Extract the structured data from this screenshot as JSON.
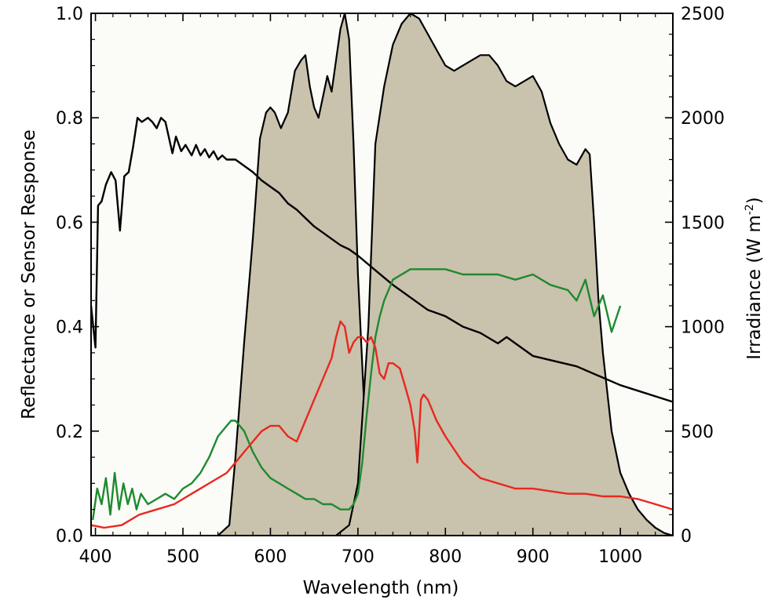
{
  "chart_data": {
    "type": "line",
    "xlabel": "Wavelength (nm)",
    "ylabel": "Reflectance or Sensor Response",
    "y2label_main": "Irradiance (W m",
    "y2label_sup": "-2",
    "y2label_close": ")",
    "xlim": [
      395,
      1060
    ],
    "ylim": [
      0,
      1.0
    ],
    "y2lim": [
      0,
      2500
    ],
    "x_ticks": [
      400,
      500,
      600,
      700,
      800,
      900,
      1000
    ],
    "x_tick_labels": [
      "400",
      "500",
      "600",
      "700",
      "800",
      "900",
      "1000"
    ],
    "y_ticks": [
      0,
      0.2,
      0.4,
      0.6,
      0.8,
      1.0
    ],
    "y_tick_labels": [
      "0.0",
      "0.2",
      "0.4",
      "0.6",
      "0.8",
      "1.0"
    ],
    "y2_ticks": [
      0,
      500,
      1000,
      1500,
      2000,
      2500
    ],
    "y2_tick_labels": [
      "0",
      "500",
      "1000",
      "1500",
      "2000",
      "2500"
    ],
    "grid": false,
    "series": [
      {
        "kind": "sensor-response-red-band",
        "axis": "left",
        "style": "filled",
        "fill": "#c9c2ad",
        "stroke": "#000000",
        "x": [
          540,
          553,
          560,
          570,
          580,
          588,
          595,
          600,
          605,
          612,
          620,
          628,
          635,
          640,
          645,
          650,
          655,
          660,
          665,
          670,
          675,
          680,
          685,
          690,
          695,
          700,
          710,
          720,
          735,
          750,
          770,
          790,
          800
        ],
        "y": [
          0,
          0.02,
          0.15,
          0.37,
          0.57,
          0.76,
          0.81,
          0.82,
          0.81,
          0.78,
          0.81,
          0.89,
          0.91,
          0.92,
          0.86,
          0.82,
          0.8,
          0.84,
          0.88,
          0.85,
          0.91,
          0.97,
          1.0,
          0.95,
          0.75,
          0.5,
          0.15,
          0.07,
          0.04,
          0.02,
          0.01,
          0.005,
          0
        ]
      },
      {
        "kind": "sensor-response-nir-band",
        "axis": "left",
        "style": "filled",
        "fill": "#c9c2ad",
        "stroke": "#000000",
        "x": [
          675,
          690,
          700,
          712,
          720,
          730,
          740,
          750,
          760,
          770,
          780,
          790,
          800,
          810,
          820,
          830,
          840,
          850,
          860,
          870,
          880,
          890,
          900,
          910,
          920,
          930,
          940,
          950,
          960,
          965,
          970,
          975,
          980,
          990,
          1000,
          1010,
          1020,
          1030,
          1040,
          1050,
          1060
        ],
        "y": [
          0,
          0.02,
          0.1,
          0.4,
          0.75,
          0.86,
          0.94,
          0.98,
          1.0,
          0.99,
          0.96,
          0.93,
          0.9,
          0.89,
          0.9,
          0.91,
          0.92,
          0.92,
          0.9,
          0.87,
          0.86,
          0.87,
          0.88,
          0.85,
          0.79,
          0.75,
          0.72,
          0.71,
          0.74,
          0.73,
          0.6,
          0.45,
          0.35,
          0.2,
          0.12,
          0.08,
          0.05,
          0.03,
          0.015,
          0.005,
          0
        ]
      },
      {
        "kind": "solar-irradiance",
        "axis": "right",
        "style": "line",
        "stroke": "#000000",
        "x": [
          395,
          400,
          403,
          407,
          412,
          418,
          423,
          428,
          433,
          438,
          443,
          448,
          453,
          460,
          465,
          470,
          475,
          480,
          488,
          492,
          498,
          503,
          510,
          515,
          520,
          525,
          530,
          535,
          540,
          545,
          550,
          560,
          570,
          580,
          590,
          600,
          610,
          620,
          630,
          640,
          650,
          660,
          670,
          680,
          690,
          700,
          720,
          740,
          760,
          780,
          800,
          820,
          840,
          860,
          870,
          880,
          900,
          950,
          1000,
          1060
        ],
        "y": [
          1100,
          900,
          1580,
          1600,
          1680,
          1740,
          1700,
          1460,
          1720,
          1740,
          1860,
          2000,
          1980,
          2000,
          1980,
          1950,
          2000,
          1980,
          1830,
          1910,
          1840,
          1870,
          1820,
          1870,
          1820,
          1850,
          1810,
          1840,
          1800,
          1820,
          1800,
          1800,
          1770,
          1740,
          1700,
          1670,
          1640,
          1590,
          1560,
          1520,
          1480,
          1450,
          1420,
          1390,
          1370,
          1340,
          1270,
          1200,
          1140,
          1080,
          1050,
          1000,
          970,
          920,
          950,
          920,
          860,
          810,
          720,
          640
        ]
      },
      {
        "kind": "vegetation-reflectance",
        "axis": "left",
        "style": "line",
        "stroke": "#1e8a2e",
        "x": [
          397,
          402,
          407,
          412,
          417,
          422,
          427,
          432,
          437,
          442,
          447,
          452,
          460,
          470,
          480,
          490,
          500,
          510,
          520,
          530,
          540,
          550,
          555,
          560,
          565,
          570,
          580,
          590,
          600,
          610,
          620,
          630,
          640,
          650,
          660,
          670,
          680,
          690,
          695,
          700,
          705,
          710,
          715,
          720,
          725,
          730,
          735,
          740,
          750,
          760,
          780,
          800,
          820,
          840,
          860,
          880,
          900,
          920,
          940,
          950,
          960,
          970,
          980,
          990,
          1000
        ],
        "y": [
          0.03,
          0.09,
          0.06,
          0.11,
          0.04,
          0.12,
          0.05,
          0.1,
          0.06,
          0.09,
          0.05,
          0.08,
          0.06,
          0.07,
          0.08,
          0.07,
          0.09,
          0.1,
          0.12,
          0.15,
          0.19,
          0.21,
          0.22,
          0.22,
          0.21,
          0.2,
          0.16,
          0.13,
          0.11,
          0.1,
          0.09,
          0.08,
          0.07,
          0.07,
          0.06,
          0.06,
          0.05,
          0.05,
          0.06,
          0.08,
          0.14,
          0.23,
          0.31,
          0.38,
          0.42,
          0.45,
          0.47,
          0.49,
          0.5,
          0.51,
          0.51,
          0.51,
          0.5,
          0.5,
          0.5,
          0.49,
          0.5,
          0.48,
          0.47,
          0.45,
          0.49,
          0.42,
          0.46,
          0.39,
          0.44
        ]
      },
      {
        "kind": "soil-reflectance",
        "axis": "left",
        "style": "line",
        "stroke": "#e8281e",
        "x": [
          395,
          410,
          430,
          450,
          470,
          490,
          510,
          530,
          550,
          560,
          570,
          580,
          590,
          600,
          610,
          620,
          630,
          640,
          650,
          660,
          670,
          675,
          680,
          685,
          690,
          695,
          700,
          705,
          710,
          715,
          720,
          725,
          730,
          735,
          740,
          748,
          755,
          760,
          765,
          768,
          770,
          772,
          775,
          780,
          790,
          800,
          820,
          840,
          860,
          880,
          900,
          920,
          940,
          960,
          980,
          1000,
          1020,
          1040,
          1060
        ],
        "y": [
          0.02,
          0.015,
          0.02,
          0.04,
          0.05,
          0.06,
          0.08,
          0.1,
          0.12,
          0.14,
          0.16,
          0.18,
          0.2,
          0.21,
          0.21,
          0.19,
          0.18,
          0.22,
          0.26,
          0.3,
          0.34,
          0.38,
          0.41,
          0.4,
          0.35,
          0.37,
          0.38,
          0.38,
          0.37,
          0.38,
          0.36,
          0.31,
          0.3,
          0.33,
          0.33,
          0.32,
          0.28,
          0.25,
          0.2,
          0.14,
          0.2,
          0.26,
          0.27,
          0.26,
          0.22,
          0.19,
          0.14,
          0.11,
          0.1,
          0.09,
          0.09,
          0.085,
          0.08,
          0.08,
          0.075,
          0.075,
          0.07,
          0.06,
          0.05
        ]
      }
    ]
  }
}
